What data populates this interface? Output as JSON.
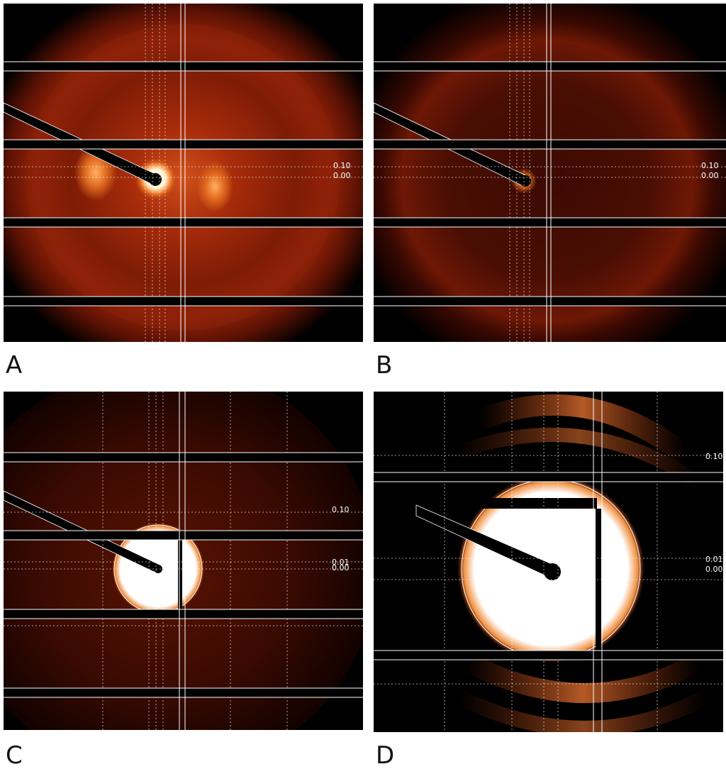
{
  "panels": [
    {
      "label": "A",
      "annotations": [
        "0.10",
        "0.00"
      ]
    },
    {
      "label": "B",
      "annotations": [
        "0.10",
        "0.00"
      ]
    },
    {
      "label": "C",
      "annotations": [
        "0.10",
        "0.01",
        "0.00"
      ]
    },
    {
      "label": "D",
      "annotations": [
        "0.10",
        "0.01",
        "0.00"
      ]
    }
  ]
}
